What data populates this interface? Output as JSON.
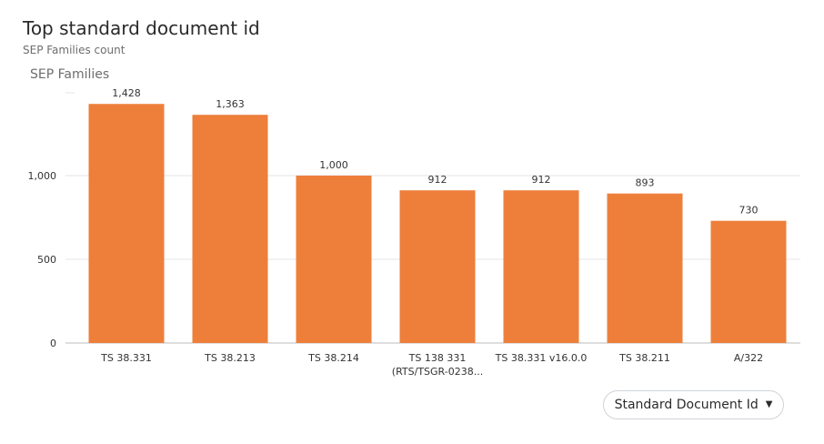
{
  "header": {
    "title": "Top standard document id",
    "subtitle": "SEP Families count"
  },
  "selector": {
    "label": "Standard Document Id",
    "icon": "caret-down-icon"
  },
  "colors": {
    "bar": "#ED7F3A",
    "grid": "#E4E4E4",
    "axis": "#BDBDBD",
    "text": "#333333",
    "ylabel": "#6E6E6E"
  },
  "chart_data": {
    "type": "bar",
    "title": "Top standard document id",
    "subtitle": "SEP Families count",
    "ylabel": "SEP Families",
    "xlabel": "",
    "categories": [
      [
        "TS 38.331"
      ],
      [
        "TS 38.213"
      ],
      [
        "TS 38.214"
      ],
      [
        "TS 138 331",
        "(RTS/TSGR-0238..."
      ],
      [
        "TS 38.331 v16.0.0"
      ],
      [
        "TS 38.211"
      ],
      [
        "A/322"
      ]
    ],
    "values": [
      1428,
      1363,
      1000,
      912,
      912,
      893,
      730
    ],
    "value_labels": [
      "1,428",
      "1,363",
      "1,000",
      "912",
      "912",
      "893",
      "730"
    ],
    "yticks": [
      0,
      500,
      1000
    ],
    "ytick_labels": [
      "0",
      "500",
      "1,000"
    ],
    "ylim": [
      0,
      1500
    ],
    "grid": true,
    "legend": false
  }
}
